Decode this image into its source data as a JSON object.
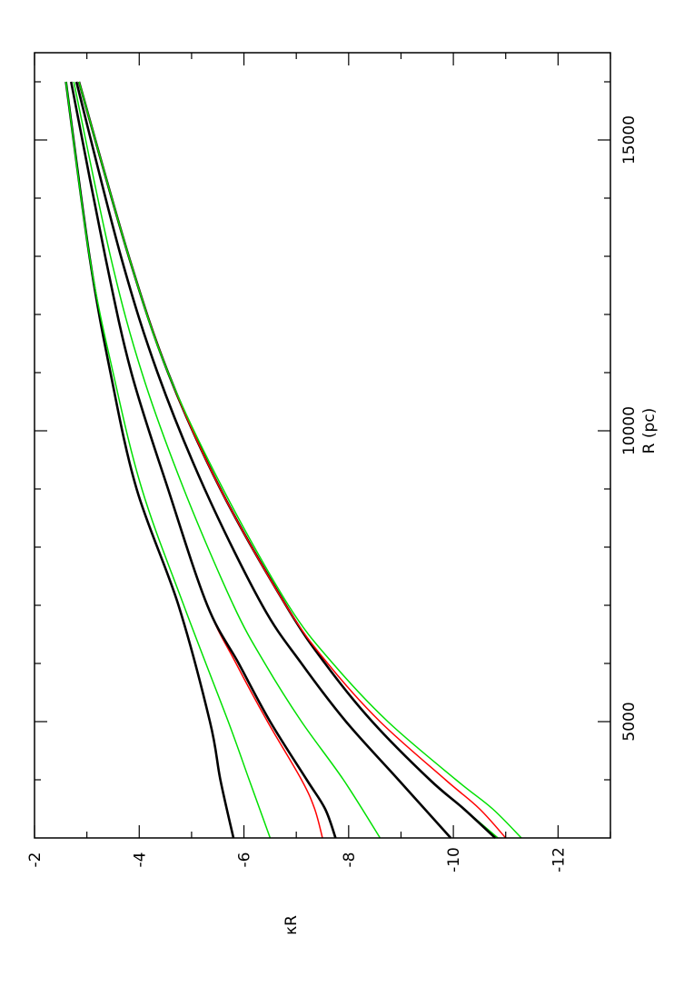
{
  "chart_data": {
    "type": "line",
    "orientation": "rotated-90-ccw",
    "xlabel": "R (pc)",
    "ylabel": "κR",
    "xlim": [
      3000,
      16500
    ],
    "ylim": [
      -13,
      -2
    ],
    "x_ticks": [
      5000,
      10000,
      15000
    ],
    "y_ticks": [
      -2,
      -4,
      -6,
      -8,
      -10,
      -12
    ],
    "grid": false,
    "colors": {
      "black": "#000000",
      "red": "#ff0000",
      "green": "#00e000"
    },
    "series": [
      {
        "color": "black",
        "x": [
          3000,
          4000,
          5000,
          7000,
          9000,
          11000,
          13000,
          16000
        ],
        "values": [
          -5.8,
          -5.55,
          -5.35,
          -4.75,
          -3.95,
          -3.45,
          -3.05,
          -2.6
        ]
      },
      {
        "color": "green",
        "x": [
          3000,
          4000,
          5000,
          7000,
          9000,
          11000,
          13000,
          16000
        ],
        "values": [
          -6.5,
          -6.1,
          -5.7,
          -4.85,
          -4.05,
          -3.5,
          -3.05,
          -2.6
        ]
      },
      {
        "color": "red",
        "x": [
          3000,
          3500,
          4000,
          5000,
          6000,
          7000,
          9000,
          11000,
          13000,
          16000
        ],
        "values": [
          -7.5,
          -7.35,
          -7.1,
          -6.45,
          -5.85,
          -5.3,
          -4.55,
          -3.85,
          -3.35,
          -2.7
        ]
      },
      {
        "color": "black",
        "x": [
          3000,
          3500,
          4000,
          5000,
          6000,
          7000,
          9000,
          11000,
          13000,
          16000
        ],
        "values": [
          -7.75,
          -7.55,
          -7.2,
          -6.5,
          -5.9,
          -5.3,
          -4.55,
          -3.85,
          -3.35,
          -2.7
        ]
      },
      {
        "color": "green",
        "x": [
          3000,
          4000,
          5000,
          6000,
          7000,
          9000,
          11000,
          13000,
          16000
        ],
        "values": [
          -8.6,
          -7.9,
          -7.1,
          -6.4,
          -5.8,
          -4.85,
          -4.05,
          -3.45,
          -2.75
        ]
      },
      {
        "color": "black",
        "x": [
          3000,
          4000,
          5000,
          6000,
          7000,
          9000,
          11000,
          13000,
          16000
        ],
        "values": [
          -9.95,
          -8.95,
          -7.95,
          -7.1,
          -6.35,
          -5.25,
          -4.35,
          -3.65,
          -2.8
        ]
      },
      {
        "color": "green",
        "x": [
          3000,
          3500,
          4000,
          5000,
          6000,
          7000,
          9000,
          11000,
          13000,
          16000
        ],
        "values": [
          -10.85,
          -10.2,
          -9.55,
          -8.45,
          -7.55,
          -6.8,
          -5.55,
          -4.55,
          -3.8,
          -2.85
        ]
      },
      {
        "color": "black",
        "x": [
          3000,
          3500,
          4000,
          5000,
          6000,
          7000,
          9000,
          11000,
          13000,
          16000
        ],
        "values": [
          -10.8,
          -10.2,
          -9.55,
          -8.45,
          -7.55,
          -6.8,
          -5.55,
          -4.55,
          -3.8,
          -2.85
        ]
      },
      {
        "color": "red",
        "x": [
          3000,
          3500,
          4000,
          5000,
          6000,
          7000,
          9000,
          11000,
          13000,
          16000
        ],
        "values": [
          -11.0,
          -10.5,
          -9.85,
          -8.6,
          -7.6,
          -6.8,
          -5.55,
          -4.55,
          -3.8,
          -2.85
        ]
      },
      {
        "color": "green",
        "x": [
          3000,
          3500,
          4000,
          5000,
          6000,
          7000,
          9000,
          11000,
          13000,
          16000
        ],
        "values": [
          -11.3,
          -10.75,
          -10.05,
          -8.75,
          -7.7,
          -6.85,
          -5.6,
          -4.55,
          -3.8,
          -2.85
        ]
      }
    ]
  }
}
